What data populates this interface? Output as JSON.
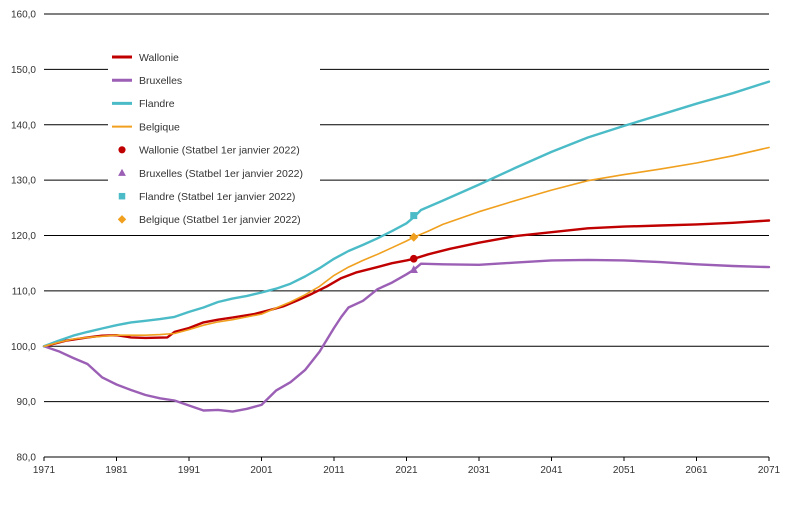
{
  "chart_data": {
    "type": "line",
    "title": "",
    "xlabel": "",
    "ylabel": "",
    "xlim": [
      1971,
      2071
    ],
    "ylim": [
      80,
      160
    ],
    "grid": true,
    "legend_position": "top-left",
    "x_ticks": [
      "1971",
      "1981",
      "1991",
      "2001",
      "2011",
      "2021",
      "2031",
      "2041",
      "2051",
      "2061",
      "2071"
    ],
    "y_ticks": [
      "80,0",
      "90,0",
      "100,0",
      "110,0",
      "120,0",
      "130,0",
      "140,0",
      "150,0",
      "160,0"
    ],
    "series": [
      {
        "name": "Wallonie",
        "color": "#c00000",
        "x": [
          1971,
          1974,
          1977,
          1979,
          1981,
          1983,
          1985,
          1988,
          1989,
          1991,
          1993,
          1995,
          1997,
          2000,
          2002,
          2004,
          2006,
          2008,
          2010,
          2012,
          2014,
          2017,
          2019,
          2021,
          2022,
          2024,
          2027,
          2031,
          2036,
          2041,
          2046,
          2051,
          2056,
          2061,
          2066,
          2071
        ],
        "values": [
          100.0,
          101.0,
          101.6,
          101.9,
          102.0,
          101.6,
          101.5,
          101.6,
          102.6,
          103.3,
          104.3,
          104.8,
          105.2,
          105.8,
          106.5,
          107.2,
          108.3,
          109.5,
          110.8,
          112.3,
          113.3,
          114.3,
          115.0,
          115.5,
          115.8,
          116.6,
          117.6,
          118.7,
          119.9,
          120.6,
          121.3,
          121.6,
          121.8,
          122.0,
          122.3,
          122.7
        ]
      },
      {
        "name": "Bruxelles",
        "color": "#9b5fb5",
        "x": [
          1971,
          1973,
          1975,
          1977,
          1979,
          1981,
          1983,
          1985,
          1987,
          1989,
          1991,
          1993,
          1995,
          1997,
          1999,
          2001,
          2003,
          2005,
          2007,
          2009,
          2011,
          2012,
          2013,
          2015,
          2017,
          2019,
          2021,
          2022,
          2023,
          2026,
          2031,
          2036,
          2041,
          2046,
          2051,
          2056,
          2061,
          2066,
          2071
        ],
        "values": [
          100.0,
          99.1,
          97.9,
          96.8,
          94.4,
          93.1,
          92.1,
          91.2,
          90.6,
          90.2,
          89.3,
          88.4,
          88.5,
          88.2,
          88.7,
          89.4,
          92.0,
          93.5,
          95.7,
          99.0,
          103.3,
          105.3,
          107.0,
          108.2,
          110.3,
          111.5,
          113.0,
          113.8,
          114.9,
          114.8,
          114.7,
          115.1,
          115.5,
          115.6,
          115.5,
          115.2,
          114.8,
          114.5,
          114.3
        ]
      },
      {
        "name": "Flandre",
        "color": "#4bbcc7",
        "x": [
          1971,
          1973,
          1975,
          1977,
          1979,
          1981,
          1983,
          1985,
          1987,
          1989,
          1991,
          1993,
          1995,
          1997,
          1999,
          2001,
          2003,
          2005,
          2007,
          2009,
          2011,
          2013,
          2015,
          2017,
          2019,
          2021,
          2022,
          2023,
          2026,
          2031,
          2036,
          2041,
          2046,
          2051,
          2056,
          2061,
          2066,
          2071
        ],
        "values": [
          100.0,
          101.0,
          101.9,
          102.6,
          103.2,
          103.8,
          104.3,
          104.6,
          104.9,
          105.3,
          106.2,
          107.0,
          108.0,
          108.6,
          109.1,
          109.7,
          110.4,
          111.3,
          112.6,
          114.1,
          115.8,
          117.2,
          118.3,
          119.5,
          120.8,
          122.2,
          123.3,
          124.6,
          126.3,
          129.2,
          132.2,
          135.1,
          137.7,
          139.8,
          141.8,
          143.8,
          145.7,
          147.8
        ]
      },
      {
        "name": "Belgique",
        "color": "#f0a01e",
        "x": [
          1971,
          1973,
          1975,
          1977,
          1979,
          1981,
          1983,
          1985,
          1987,
          1989,
          1991,
          1993,
          1995,
          1997,
          1999,
          2001,
          2003,
          2005,
          2007,
          2009,
          2011,
          2013,
          2015,
          2017,
          2019,
          2021,
          2022,
          2024,
          2026,
          2031,
          2036,
          2041,
          2046,
          2051,
          2056,
          2061,
          2066,
          2071
        ],
        "values": [
          100.0,
          100.7,
          101.3,
          101.6,
          101.8,
          102.0,
          102.0,
          102.0,
          102.1,
          102.3,
          103.0,
          103.8,
          104.4,
          104.8,
          105.3,
          105.8,
          106.9,
          108.0,
          109.3,
          110.8,
          112.8,
          114.3,
          115.5,
          116.6,
          117.8,
          119.0,
          119.7,
          120.8,
          122.0,
          124.3,
          126.3,
          128.2,
          129.9,
          131.0,
          132.0,
          133.1,
          134.4,
          135.9
        ]
      }
    ],
    "points": [
      {
        "name": "Wallonie (Statbel 1er janvier 2022)",
        "color": "#c00000",
        "marker": "circle",
        "x": 2022,
        "y": 115.8
      },
      {
        "name": "Bruxelles (Statbel 1er janvier 2022)",
        "color": "#9b5fb5",
        "marker": "triangle",
        "x": 2022,
        "y": 113.8
      },
      {
        "name": "Flandre (Statbel 1er janvier 2022)",
        "color": "#4bbcc7",
        "marker": "square",
        "x": 2022,
        "y": 123.6
      },
      {
        "name": "Belgique (Statbel 1er janvier 2022)",
        "color": "#f0a01e",
        "marker": "diamond",
        "x": 2022,
        "y": 119.7
      }
    ]
  }
}
